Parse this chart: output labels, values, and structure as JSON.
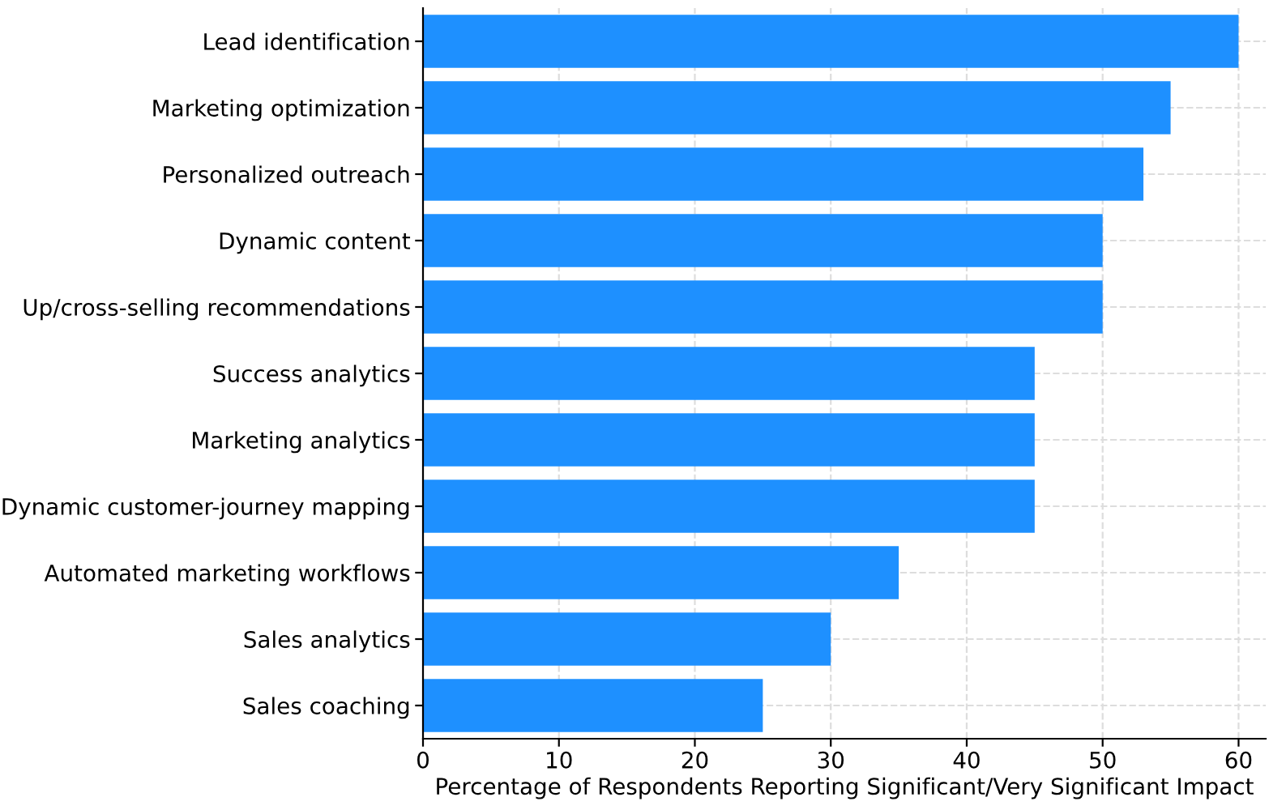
{
  "chart_data": {
    "type": "bar",
    "orientation": "horizontal",
    "categories": [
      "Lead identification",
      "Marketing optimization",
      "Personalized outreach",
      "Dynamic content",
      "Up/cross-selling recommendations",
      "Success analytics",
      "Marketing analytics",
      "Dynamic customer-journey mapping",
      "Automated marketing workflows",
      "Sales analytics",
      "Sales coaching"
    ],
    "values": [
      60,
      55,
      53,
      50,
      50,
      45,
      45,
      45,
      35,
      30,
      25
    ],
    "color": "#1e90ff",
    "xlabel": "Percentage of Respondents Reporting Significant/Very Significant Impact",
    "xlim": [
      0,
      62
    ],
    "xticks": [
      0,
      10,
      20,
      30,
      40,
      50,
      60
    ],
    "grid": true
  }
}
